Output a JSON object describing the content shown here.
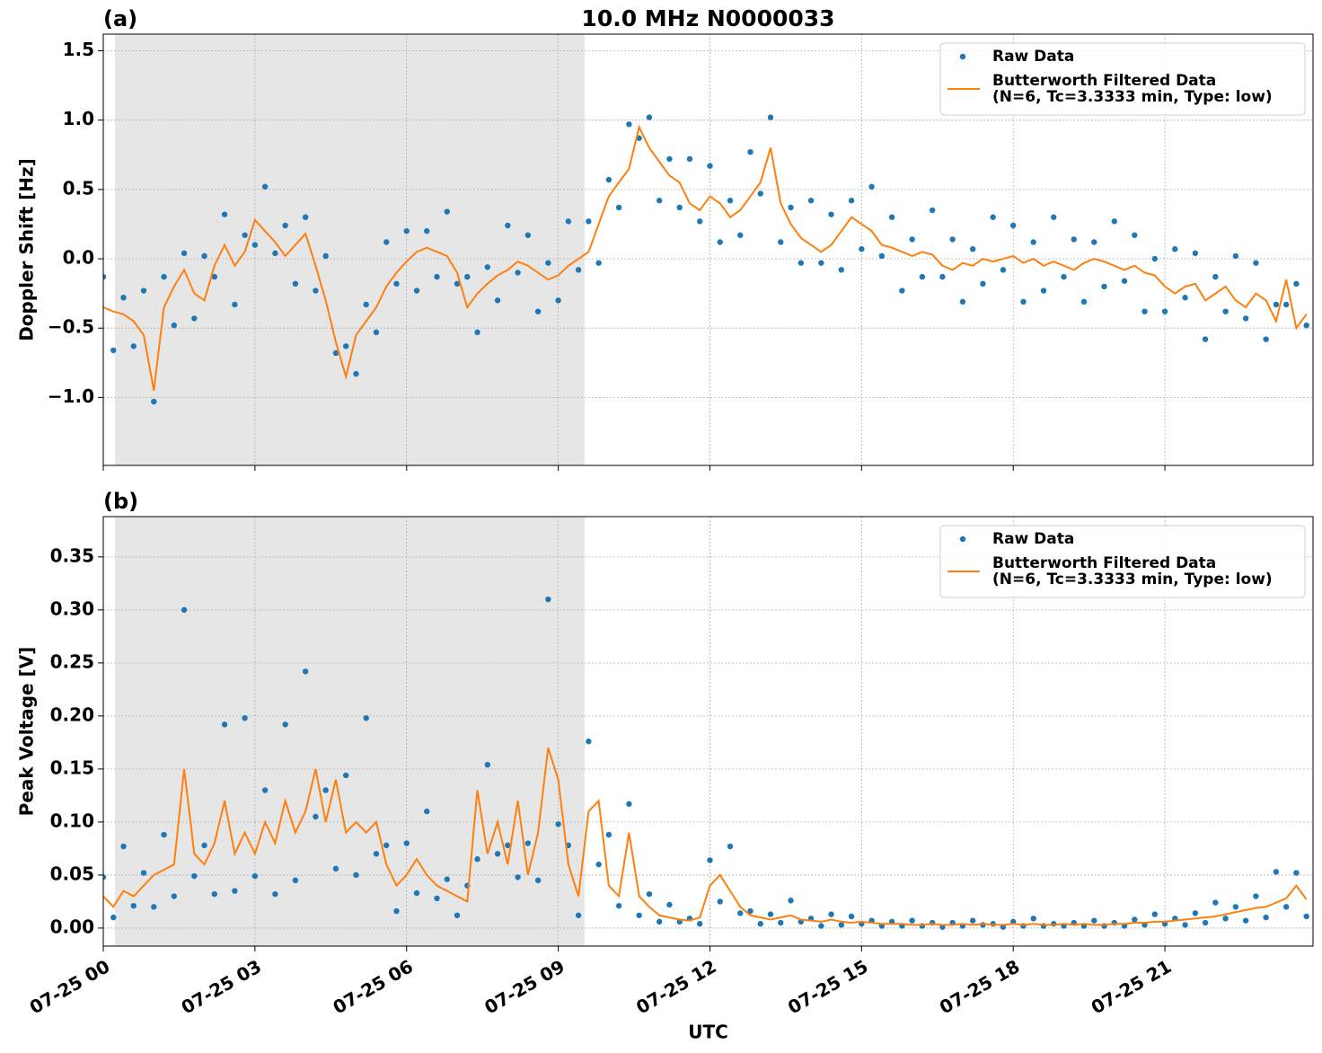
{
  "chart_data": [
    {
      "type": "line",
      "panel_label": "(a)",
      "title": "10.0 MHz N0000033",
      "ylabel": "Doppler Shift [Hz]",
      "xlim": [
        0,
        23.93
      ],
      "xticks": [
        0,
        3,
        6,
        9,
        12,
        15,
        18,
        21
      ],
      "show_xtick_labels": false,
      "ylim": [
        -1.49,
        1.62
      ],
      "yticks": [
        {
          "value": -1.0,
          "label": "−1.0"
        },
        {
          "value": -0.5,
          "label": "−0.5"
        },
        {
          "value": 0.0,
          "label": "0.0"
        },
        {
          "value": 0.5,
          "label": "0.5"
        },
        {
          "value": 1.0,
          "label": "1.0"
        },
        {
          "value": 1.5,
          "label": "1.5"
        }
      ],
      "grid": true,
      "legend": "upper right",
      "shaded_xspan": [
        0.23,
        9.52
      ],
      "x": [
        0,
        0.2,
        0.4,
        0.6,
        0.8,
        1,
        1.2,
        1.4,
        1.6,
        1.8,
        2,
        2.2,
        2.4,
        2.6,
        2.8,
        3,
        3.2,
        3.4,
        3.6,
        3.8,
        4,
        4.2,
        4.4,
        4.6,
        4.8,
        5,
        5.2,
        5.4,
        5.6,
        5.8,
        6,
        6.2,
        6.4,
        6.6,
        6.8,
        7,
        7.2,
        7.4,
        7.6,
        7.8,
        8,
        8.2,
        8.4,
        8.6,
        8.8,
        9,
        9.2,
        9.4,
        9.6,
        9.8,
        10,
        10.2,
        10.4,
        10.6,
        10.8,
        11,
        11.2,
        11.4,
        11.6,
        11.8,
        12,
        12.2,
        12.4,
        12.6,
        12.8,
        13,
        13.2,
        13.4,
        13.6,
        13.8,
        14,
        14.2,
        14.4,
        14.6,
        14.8,
        15,
        15.2,
        15.4,
        15.6,
        15.8,
        16,
        16.2,
        16.4,
        16.6,
        16.8,
        17,
        17.2,
        17.4,
        17.6,
        17.8,
        18,
        18.2,
        18.4,
        18.6,
        18.8,
        19,
        19.2,
        19.4,
        19.6,
        19.8,
        20,
        20.2,
        20.4,
        20.6,
        20.8,
        21,
        21.2,
        21.4,
        21.6,
        21.8,
        22,
        22.2,
        22.4,
        22.6,
        22.8,
        23,
        23.2,
        23.4,
        23.6,
        23.8
      ],
      "series": [
        {
          "name": "Raw Data",
          "color": "#1f77b4",
          "style": "markers",
          "values": [
            -0.13,
            -0.66,
            -0.28,
            -0.63,
            -0.23,
            -1.03,
            -0.13,
            -0.48,
            0.04,
            -0.43,
            0.02,
            -0.13,
            0.32,
            -0.33,
            0.17,
            0.1,
            0.52,
            0.04,
            0.24,
            -0.18,
            0.3,
            -0.23,
            0.02,
            -0.68,
            -0.63,
            -0.83,
            -0.33,
            -0.53,
            0.12,
            -0.18,
            0.2,
            -0.23,
            0.2,
            -0.13,
            0.34,
            -0.18,
            -0.13,
            -0.53,
            -0.06,
            -0.3,
            0.24,
            -0.1,
            0.17,
            -0.38,
            -0.03,
            -0.3,
            0.27,
            -0.08,
            0.27,
            -0.03,
            0.57,
            0.37,
            0.97,
            0.87,
            1.02,
            0.42,
            0.72,
            0.37,
            0.72,
            0.27,
            0.67,
            0.12,
            0.42,
            0.17,
            0.77,
            0.47,
            1.02,
            0.12,
            0.37,
            -0.03,
            0.42,
            -0.03,
            0.32,
            -0.08,
            0.42,
            0.07,
            0.52,
            0.02,
            0.3,
            -0.23,
            0.14,
            -0.13,
            0.35,
            -0.13,
            0.14,
            -0.31,
            0.07,
            -0.18,
            0.3,
            -0.08,
            0.24,
            -0.31,
            0.12,
            -0.23,
            0.3,
            -0.13,
            0.14,
            -0.31,
            0.12,
            -0.2,
            0.27,
            -0.16,
            0.17,
            -0.38,
            0.0,
            -0.38,
            0.07,
            -0.28,
            0.04,
            -0.58,
            -0.13,
            -0.38,
            0.02,
            -0.43,
            -0.03,
            -0.58,
            -0.33,
            -0.33,
            -0.18,
            -0.48
          ]
        },
        {
          "name": "Butterworth Filtered Data\n(N=6, Tc=3.3333 min, Type: low)",
          "color": "#ff7f0e",
          "style": "line",
          "values": [
            -0.35,
            -0.38,
            -0.4,
            -0.45,
            -0.55,
            -0.95,
            -0.35,
            -0.2,
            -0.08,
            -0.25,
            -0.3,
            -0.05,
            0.1,
            -0.05,
            0.05,
            0.28,
            0.2,
            0.12,
            0.02,
            0.1,
            0.18,
            -0.05,
            -0.3,
            -0.6,
            -0.85,
            -0.55,
            -0.45,
            -0.35,
            -0.2,
            -0.1,
            -0.02,
            0.05,
            0.08,
            0.05,
            0.02,
            -0.1,
            -0.35,
            -0.25,
            -0.18,
            -0.12,
            -0.08,
            -0.02,
            -0.05,
            -0.1,
            -0.15,
            -0.12,
            -0.05,
            0.0,
            0.05,
            0.25,
            0.45,
            0.55,
            0.65,
            0.95,
            0.8,
            0.7,
            0.6,
            0.55,
            0.4,
            0.35,
            0.45,
            0.4,
            0.3,
            0.35,
            0.45,
            0.55,
            0.8,
            0.4,
            0.25,
            0.15,
            0.1,
            0.05,
            0.1,
            0.2,
            0.3,
            0.25,
            0.2,
            0.1,
            0.08,
            0.05,
            0.02,
            0.05,
            0.03,
            -0.05,
            -0.08,
            -0.03,
            -0.05,
            0.0,
            -0.02,
            0.0,
            0.02,
            -0.03,
            0.0,
            -0.05,
            -0.02,
            -0.05,
            -0.08,
            -0.03,
            0.0,
            -0.02,
            -0.05,
            -0.08,
            -0.05,
            -0.1,
            -0.12,
            -0.2,
            -0.25,
            -0.2,
            -0.18,
            -0.3,
            -0.25,
            -0.2,
            -0.3,
            -0.35,
            -0.25,
            -0.3,
            -0.45,
            -0.15,
            -0.5,
            -0.4
          ]
        }
      ]
    },
    {
      "type": "line",
      "panel_label": "(b)",
      "ylabel": "Peak Voltage [V]",
      "xlabel": "UTC",
      "xlim": [
        0,
        23.93
      ],
      "xticks": [
        {
          "value": 0,
          "label": "07-25 00"
        },
        {
          "value": 3,
          "label": "07-25 03"
        },
        {
          "value": 6,
          "label": "07-25 06"
        },
        {
          "value": 9,
          "label": "07-25 09"
        },
        {
          "value": 12,
          "label": "07-25 12"
        },
        {
          "value": 15,
          "label": "07-25 15"
        },
        {
          "value": 18,
          "label": "07-25 18"
        },
        {
          "value": 21,
          "label": "07-25 21"
        }
      ],
      "show_xtick_labels": true,
      "ylim": [
        -0.017,
        0.388
      ],
      "yticks": [
        {
          "value": 0,
          "label": "0.00"
        },
        {
          "value": 0.05,
          "label": "0.05"
        },
        {
          "value": 0.1,
          "label": "0.10"
        },
        {
          "value": 0.15,
          "label": "0.15"
        },
        {
          "value": 0.2,
          "label": "0.20"
        },
        {
          "value": 0.25,
          "label": "0.25"
        },
        {
          "value": 0.3,
          "label": "0.30"
        },
        {
          "value": 0.35,
          "label": "0.35"
        }
      ],
      "grid": true,
      "legend": "upper right",
      "shaded_xspan": [
        0.23,
        9.52
      ],
      "x": [
        0,
        0.2,
        0.4,
        0.6,
        0.8,
        1,
        1.2,
        1.4,
        1.6,
        1.8,
        2,
        2.2,
        2.4,
        2.6,
        2.8,
        3,
        3.2,
        3.4,
        3.6,
        3.8,
        4,
        4.2,
        4.4,
        4.6,
        4.8,
        5,
        5.2,
        5.4,
        5.6,
        5.8,
        6,
        6.2,
        6.4,
        6.6,
        6.8,
        7,
        7.2,
        7.4,
        7.6,
        7.8,
        8,
        8.2,
        8.4,
        8.6,
        8.8,
        9,
        9.2,
        9.4,
        9.6,
        9.8,
        10,
        10.2,
        10.4,
        10.6,
        10.8,
        11,
        11.2,
        11.4,
        11.6,
        11.8,
        12,
        12.2,
        12.4,
        12.6,
        12.8,
        13,
        13.2,
        13.4,
        13.6,
        13.8,
        14,
        14.2,
        14.4,
        14.6,
        14.8,
        15,
        15.2,
        15.4,
        15.6,
        15.8,
        16,
        16.2,
        16.4,
        16.6,
        16.8,
        17,
        17.2,
        17.4,
        17.6,
        17.8,
        18,
        18.2,
        18.4,
        18.6,
        18.8,
        19,
        19.2,
        19.4,
        19.6,
        19.8,
        20,
        20.2,
        20.4,
        20.6,
        20.8,
        21,
        21.2,
        21.4,
        21.6,
        21.8,
        22,
        22.2,
        22.4,
        22.6,
        22.8,
        23,
        23.2,
        23.4,
        23.6,
        23.8
      ],
      "series": [
        {
          "name": "Raw Data",
          "color": "#1f77b4",
          "style": "markers",
          "values": [
            0.048,
            0.01,
            0.077,
            0.021,
            0.052,
            0.02,
            0.088,
            0.03,
            0.3,
            0.049,
            0.078,
            0.032,
            0.192,
            0.035,
            0.198,
            0.049,
            0.13,
            0.032,
            0.192,
            0.045,
            0.242,
            0.105,
            0.13,
            0.056,
            0.144,
            0.05,
            0.198,
            0.07,
            0.078,
            0.016,
            0.08,
            0.033,
            0.11,
            0.028,
            0.046,
            0.012,
            0.04,
            0.065,
            0.154,
            0.07,
            0.078,
            0.048,
            0.08,
            0.045,
            0.31,
            0.098,
            0.078,
            0.012,
            0.176,
            0.06,
            0.088,
            0.021,
            0.117,
            0.012,
            0.032,
            0.006,
            0.022,
            0.006,
            0.009,
            0.004,
            0.064,
            0.025,
            0.077,
            0.014,
            0.016,
            0.004,
            0.013,
            0.005,
            0.026,
            0.006,
            0.009,
            0.002,
            0.013,
            0.003,
            0.011,
            0.004,
            0.007,
            0.002,
            0.006,
            0.002,
            0.007,
            0.002,
            0.005,
            0.001,
            0.005,
            0.002,
            0.007,
            0.003,
            0.004,
            0.001,
            0.006,
            0.002,
            0.009,
            0.002,
            0.004,
            0.002,
            0.005,
            0.002,
            0.007,
            0.002,
            0.005,
            0.002,
            0.008,
            0.003,
            0.013,
            0.004,
            0.009,
            0.003,
            0.014,
            0.005,
            0.024,
            0.009,
            0.02,
            0.007,
            0.03,
            0.01,
            0.053,
            0.02,
            0.052,
            0.011
          ]
        },
        {
          "name": "Butterworth Filtered Data\n(N=6, Tc=3.3333 min, Type: low)",
          "color": "#ff7f0e",
          "style": "line",
          "values": [
            0.03,
            0.02,
            0.035,
            0.03,
            0.04,
            0.05,
            0.055,
            0.06,
            0.15,
            0.07,
            0.06,
            0.08,
            0.12,
            0.07,
            0.09,
            0.07,
            0.1,
            0.08,
            0.12,
            0.09,
            0.11,
            0.15,
            0.1,
            0.14,
            0.09,
            0.1,
            0.09,
            0.1,
            0.06,
            0.04,
            0.05,
            0.065,
            0.05,
            0.04,
            0.035,
            0.03,
            0.025,
            0.13,
            0.07,
            0.1,
            0.06,
            0.12,
            0.05,
            0.09,
            0.17,
            0.14,
            0.06,
            0.03,
            0.11,
            0.12,
            0.04,
            0.03,
            0.09,
            0.03,
            0.02,
            0.012,
            0.01,
            0.008,
            0.007,
            0.01,
            0.04,
            0.05,
            0.035,
            0.02,
            0.012,
            0.01,
            0.008,
            0.01,
            0.012,
            0.008,
            0.007,
            0.006,
            0.008,
            0.006,
            0.005,
            0.006,
            0.005,
            0.004,
            0.004,
            0.004,
            0.003,
            0.003,
            0.004,
            0.003,
            0.003,
            0.004,
            0.003,
            0.004,
            0.003,
            0.003,
            0.004,
            0.003,
            0.004,
            0.003,
            0.003,
            0.004,
            0.003,
            0.004,
            0.003,
            0.003,
            0.004,
            0.004,
            0.005,
            0.005,
            0.006,
            0.006,
            0.007,
            0.008,
            0.009,
            0.01,
            0.011,
            0.013,
            0.015,
            0.017,
            0.019,
            0.02,
            0.024,
            0.028,
            0.04,
            0.027
          ]
        }
      ]
    }
  ]
}
